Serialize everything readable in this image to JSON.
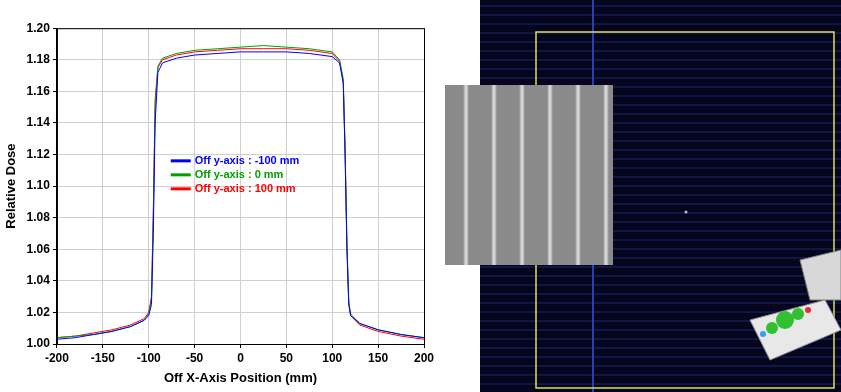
{
  "chart_data": {
    "type": "line",
    "x_label": "Off X-Axis Position (mm)",
    "y_label": "Relative Dose",
    "x": [
      -200,
      -180,
      -160,
      -140,
      -120,
      -105,
      -100,
      -97,
      -95,
      -93,
      -90,
      -85,
      -70,
      -50,
      -25,
      0,
      25,
      50,
      75,
      100,
      108,
      112,
      114,
      116,
      118,
      120,
      130,
      150,
      175,
      200
    ],
    "series": [
      {
        "name": "Off y-axis : -100 mm",
        "color": "#0000ff",
        "values": [
          1.003,
          1.004,
          1.006,
          1.008,
          1.011,
          1.015,
          1.018,
          1.025,
          1.07,
          1.14,
          1.172,
          1.178,
          1.181,
          1.183,
          1.184,
          1.185,
          1.185,
          1.185,
          1.184,
          1.182,
          1.178,
          1.165,
          1.12,
          1.06,
          1.025,
          1.018,
          1.013,
          1.009,
          1.006,
          1.004
        ]
      },
      {
        "name": "Off y-axis : 0 mm",
        "color": "#00a000",
        "values": [
          1.004,
          1.005,
          1.006,
          1.008,
          1.011,
          1.015,
          1.019,
          1.028,
          1.08,
          1.15,
          1.176,
          1.181,
          1.184,
          1.186,
          1.187,
          1.188,
          1.189,
          1.188,
          1.187,
          1.185,
          1.18,
          1.168,
          1.125,
          1.065,
          1.027,
          1.019,
          1.013,
          1.009,
          1.006,
          1.004
        ]
      },
      {
        "name": "Off y-axis : 100 mm",
        "color": "#ff0000",
        "values": [
          1.004,
          1.005,
          1.007,
          1.009,
          1.012,
          1.016,
          1.02,
          1.03,
          1.085,
          1.155,
          1.175,
          1.18,
          1.183,
          1.185,
          1.186,
          1.187,
          1.187,
          1.187,
          1.186,
          1.184,
          1.179,
          1.166,
          1.122,
          1.062,
          1.026,
          1.018,
          1.012,
          1.008,
          1.005,
          1.003
        ]
      }
    ],
    "xlim": [
      -200,
      200
    ],
    "xticks": [
      -200,
      -150,
      -100,
      -50,
      0,
      50,
      100,
      150,
      200
    ],
    "ylim": [
      1,
      1.2
    ],
    "yticks": [
      {
        "value": 1,
        "label": "1.00"
      },
      {
        "value": 1.02,
        "label": "1.02"
      },
      {
        "value": 1.04,
        "label": "1.04"
      },
      {
        "value": 1.06,
        "label": "1.06"
      },
      {
        "value": 1.08,
        "label": "1.08"
      },
      {
        "value": 1.1,
        "label": "1.10"
      },
      {
        "value": 1.12,
        "label": "1.12"
      },
      {
        "value": 1.14,
        "label": "1.14"
      },
      {
        "value": 1.16,
        "label": "1.16"
      },
      {
        "value": 1.18,
        "label": "1.18"
      },
      {
        "value": 1.2,
        "label": "1.20"
      }
    ],
    "grid": true,
    "legend": "center"
  }
}
